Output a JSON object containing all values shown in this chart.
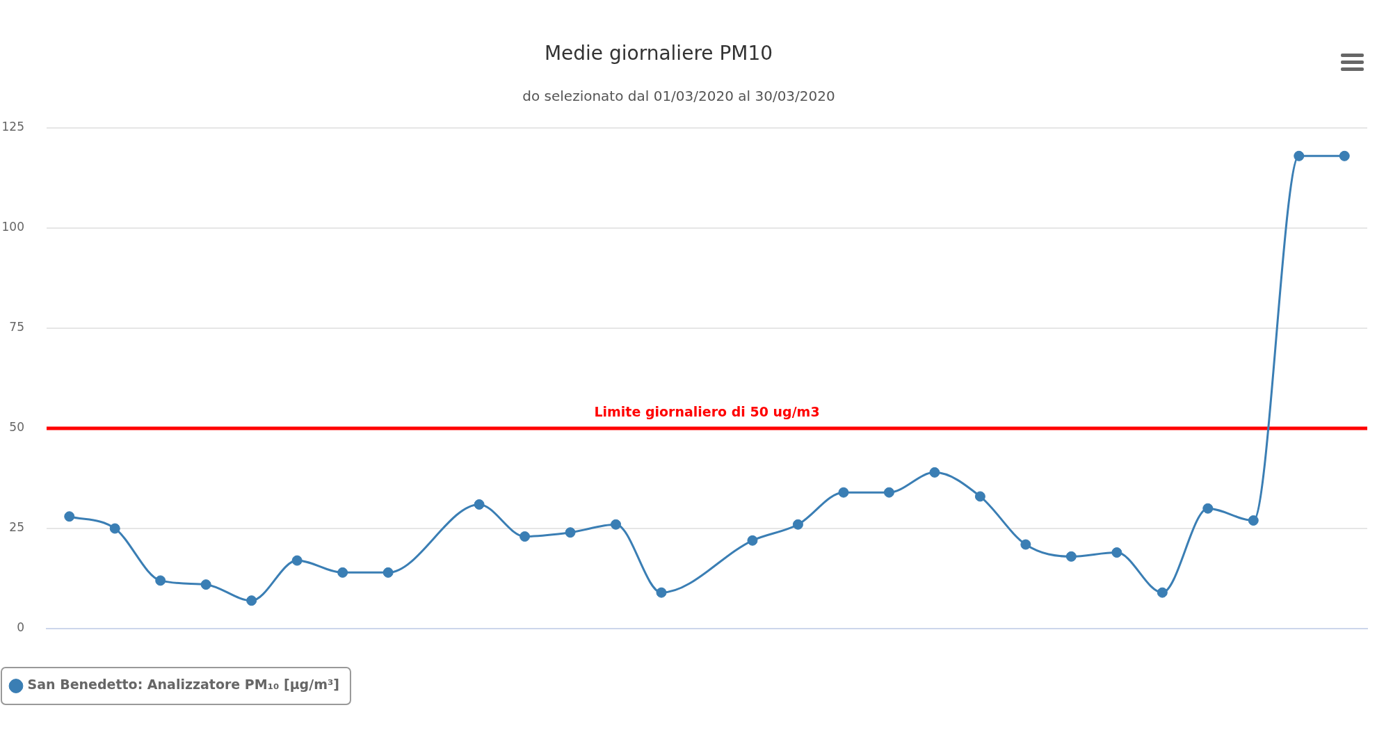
{
  "chart_data": {
    "type": "line",
    "title": "Medie giornaliere PM10",
    "subtitle": "do selezionato dal 01/03/2020 al 30/03/2020",
    "categories": [
      null,
      null,
      null,
      null,
      null,
      null,
      null,
      null,
      null,
      null,
      null,
      null,
      null,
      null,
      null,
      null,
      null,
      null,
      null,
      null,
      null,
      null,
      null,
      null,
      null,
      null,
      null,
      null,
      null
    ],
    "series": [
      {
        "name": "San Benedetto: Analizzatore PM₁₀ [µg/m³]",
        "color": "#3a7eb4",
        "values": [
          28,
          25,
          12,
          11,
          7,
          17,
          14,
          14,
          null,
          31,
          23,
          24,
          26,
          9,
          null,
          22,
          26,
          34,
          34,
          39,
          33,
          21,
          18,
          19,
          9,
          30,
          27,
          118,
          118
        ]
      }
    ],
    "ylim": [
      0,
      125
    ],
    "yticks": [
      0,
      25,
      50,
      75,
      100,
      125
    ],
    "grid": "y",
    "legend": "bottom left",
    "marker": "circle",
    "line_style": "solid",
    "ref_lines": [
      {
        "axis": "y",
        "value": 50,
        "label": "Limite giornaliero di 50 ug/m3",
        "color": "#ff0000"
      }
    ]
  }
}
